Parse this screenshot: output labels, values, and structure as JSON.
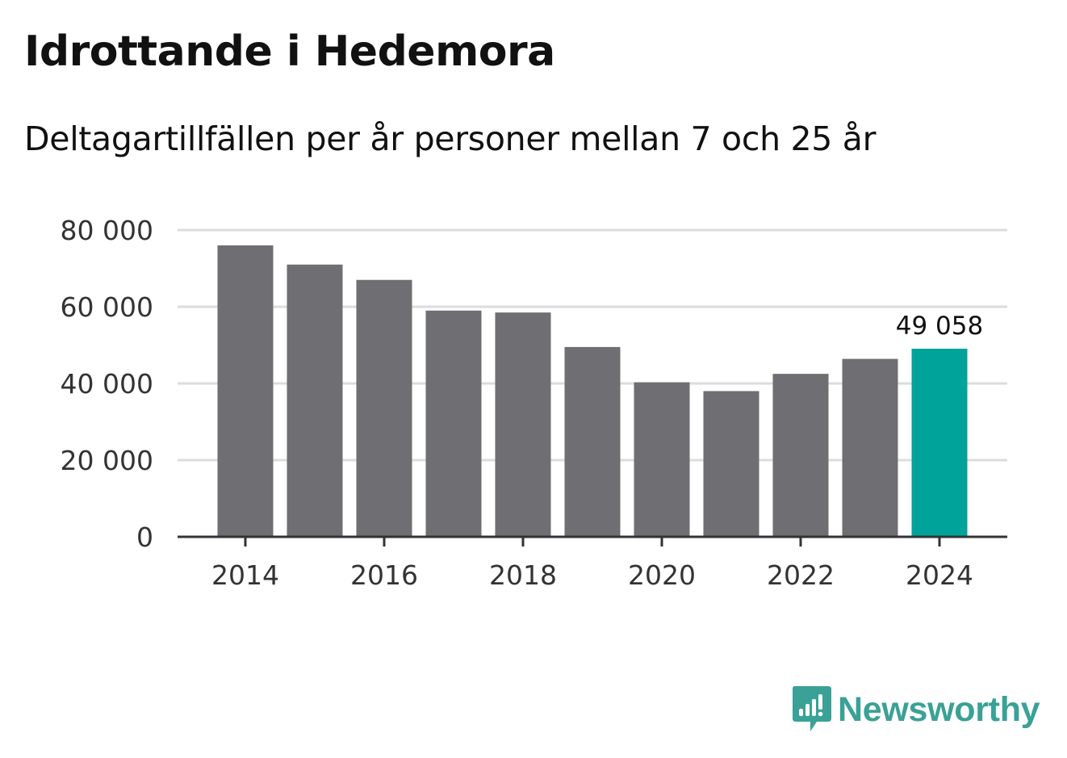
{
  "header": {
    "title": "Idrottande i Hedemora",
    "subtitle": "Deltagartillfällen per år personer mellan 7 och 25 år"
  },
  "brand": {
    "name": "Newsworthy",
    "color": "#3aa196",
    "icon": "newsworthy-logo-icon"
  },
  "colors": {
    "bar": "#6e6e73",
    "highlight": "#00a39a",
    "grid": "#dcdcdc",
    "axis": "#333333"
  },
  "chart_data": {
    "type": "bar",
    "title": "Idrottande i Hedemora",
    "subtitle": "Deltagartillfällen per år personer mellan 7 och 25 år",
    "xlabel": "",
    "ylabel": "",
    "categories": [
      "2014",
      "2015",
      "2016",
      "2017",
      "2018",
      "2019",
      "2020",
      "2021",
      "2022",
      "2023",
      "2024"
    ],
    "values": [
      76000,
      71000,
      67000,
      59000,
      58500,
      49500,
      40300,
      38000,
      42500,
      46400,
      49058
    ],
    "highlight_index": 10,
    "highlight_label": "49 058",
    "ylim": [
      0,
      80000
    ],
    "yticks": [
      0,
      20000,
      40000,
      60000,
      80000
    ],
    "ytick_labels": [
      "0",
      "20 000",
      "40 000",
      "60 000",
      "80 000"
    ],
    "xtick_labels": [
      "2014",
      "2016",
      "2018",
      "2020",
      "2022",
      "2024"
    ],
    "grid": true
  }
}
